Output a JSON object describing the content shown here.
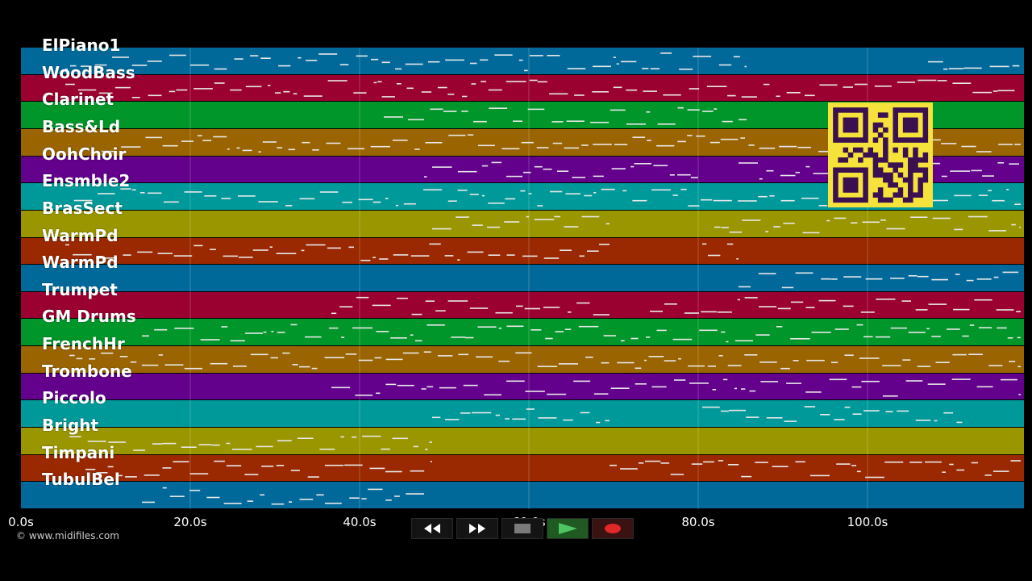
{
  "tracks": [
    {
      "label": "ElPiano1",
      "color": "#00699a"
    },
    {
      "label": "WoodBass",
      "color": "#9a0030"
    },
    {
      "label": "Clarinet",
      "color": "#00962a"
    },
    {
      "label": "Bass&Ld",
      "color": "#9a6400"
    },
    {
      "label": "OohChoir",
      "color": "#63008c"
    },
    {
      "label": "Ensmble2",
      "color": "#00999a"
    },
    {
      "label": "BrasSect",
      "color": "#9a9600"
    },
    {
      "label": "WarmPd",
      "color": "#9a2800"
    },
    {
      "label": "WarmPd",
      "color": "#00699a"
    },
    {
      "label": "Trumpet",
      "color": "#9a0030"
    },
    {
      "label": "GM Drums",
      "color": "#00962a"
    },
    {
      "label": "FrenchHr",
      "color": "#9a6400"
    },
    {
      "label": "Trombone",
      "color": "#63008c"
    },
    {
      "label": "Piccolo",
      "color": "#00999a"
    },
    {
      "label": "Bright",
      "color": "#9a9600"
    },
    {
      "label": "Timpani",
      "color": "#9a2800"
    },
    {
      "label": "TubulBel",
      "color": "#00699a"
    }
  ],
  "timeline": {
    "ticks": [
      "0.0s",
      "20.0s",
      "40.0s",
      "60.0s",
      "80.0s",
      "100.0s"
    ]
  },
  "copyright": "© www.midifiles.com",
  "transport": {
    "rewind_icon": "rewind-icon",
    "forward_icon": "fast-forward-icon",
    "stop_icon": "stop-icon",
    "play_icon": "play-icon",
    "record_icon": "record-icon"
  },
  "qr_code": {
    "color": "#f5e23a",
    "ink": "#3a1050"
  }
}
